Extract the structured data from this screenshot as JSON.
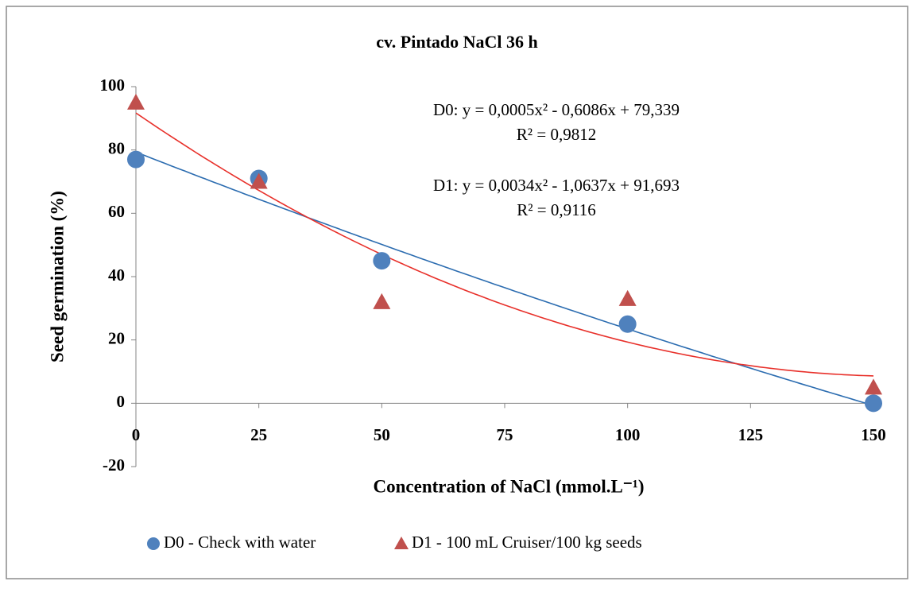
{
  "chart_data": {
    "type": "scatter",
    "title": "cv. Pintado  NaCl 36 h",
    "x_label": "Concentration of NaCl (mmol.L⁻¹)",
    "y_label": "Seed germination  (%)",
    "xlim": [
      0,
      150
    ],
    "xticks": [
      0,
      25,
      50,
      75,
      100,
      125,
      150
    ],
    "ylim": [
      -20,
      100
    ],
    "yticks": [
      -20,
      0,
      20,
      40,
      60,
      80,
      100
    ],
    "grid": false,
    "legend": "bottom",
    "series": [
      {
        "name": "D0 - Check with water",
        "color": "#4f81bd",
        "marker": "circle",
        "x": [
          0,
          25,
          50,
          100,
          150
        ],
        "values": [
          77,
          71,
          45,
          25,
          0
        ],
        "trendline": {
          "color": "#2b6cb0",
          "coefficients": [
            0.0005,
            -0.6086,
            79.339
          ],
          "equation": "D0: y = 0,0005x² - 0,6086x + 79,339",
          "r2": "R² = 0,9812"
        }
      },
      {
        "name": "D1 - 100 mL Cruiser/100 kg seeds",
        "color": "#c0504d",
        "marker": "triangle",
        "x": [
          0,
          25,
          50,
          100,
          150
        ],
        "values": [
          95,
          70,
          32,
          33,
          5
        ],
        "trendline": {
          "color": "#e8302a",
          "coefficients": [
            0.0034,
            -1.0637,
            91.693
          ],
          "equation": "D1: y = 0,0034x² - 1,0637x + 91,693",
          "r2": "R² = 0,9116"
        }
      }
    ]
  }
}
